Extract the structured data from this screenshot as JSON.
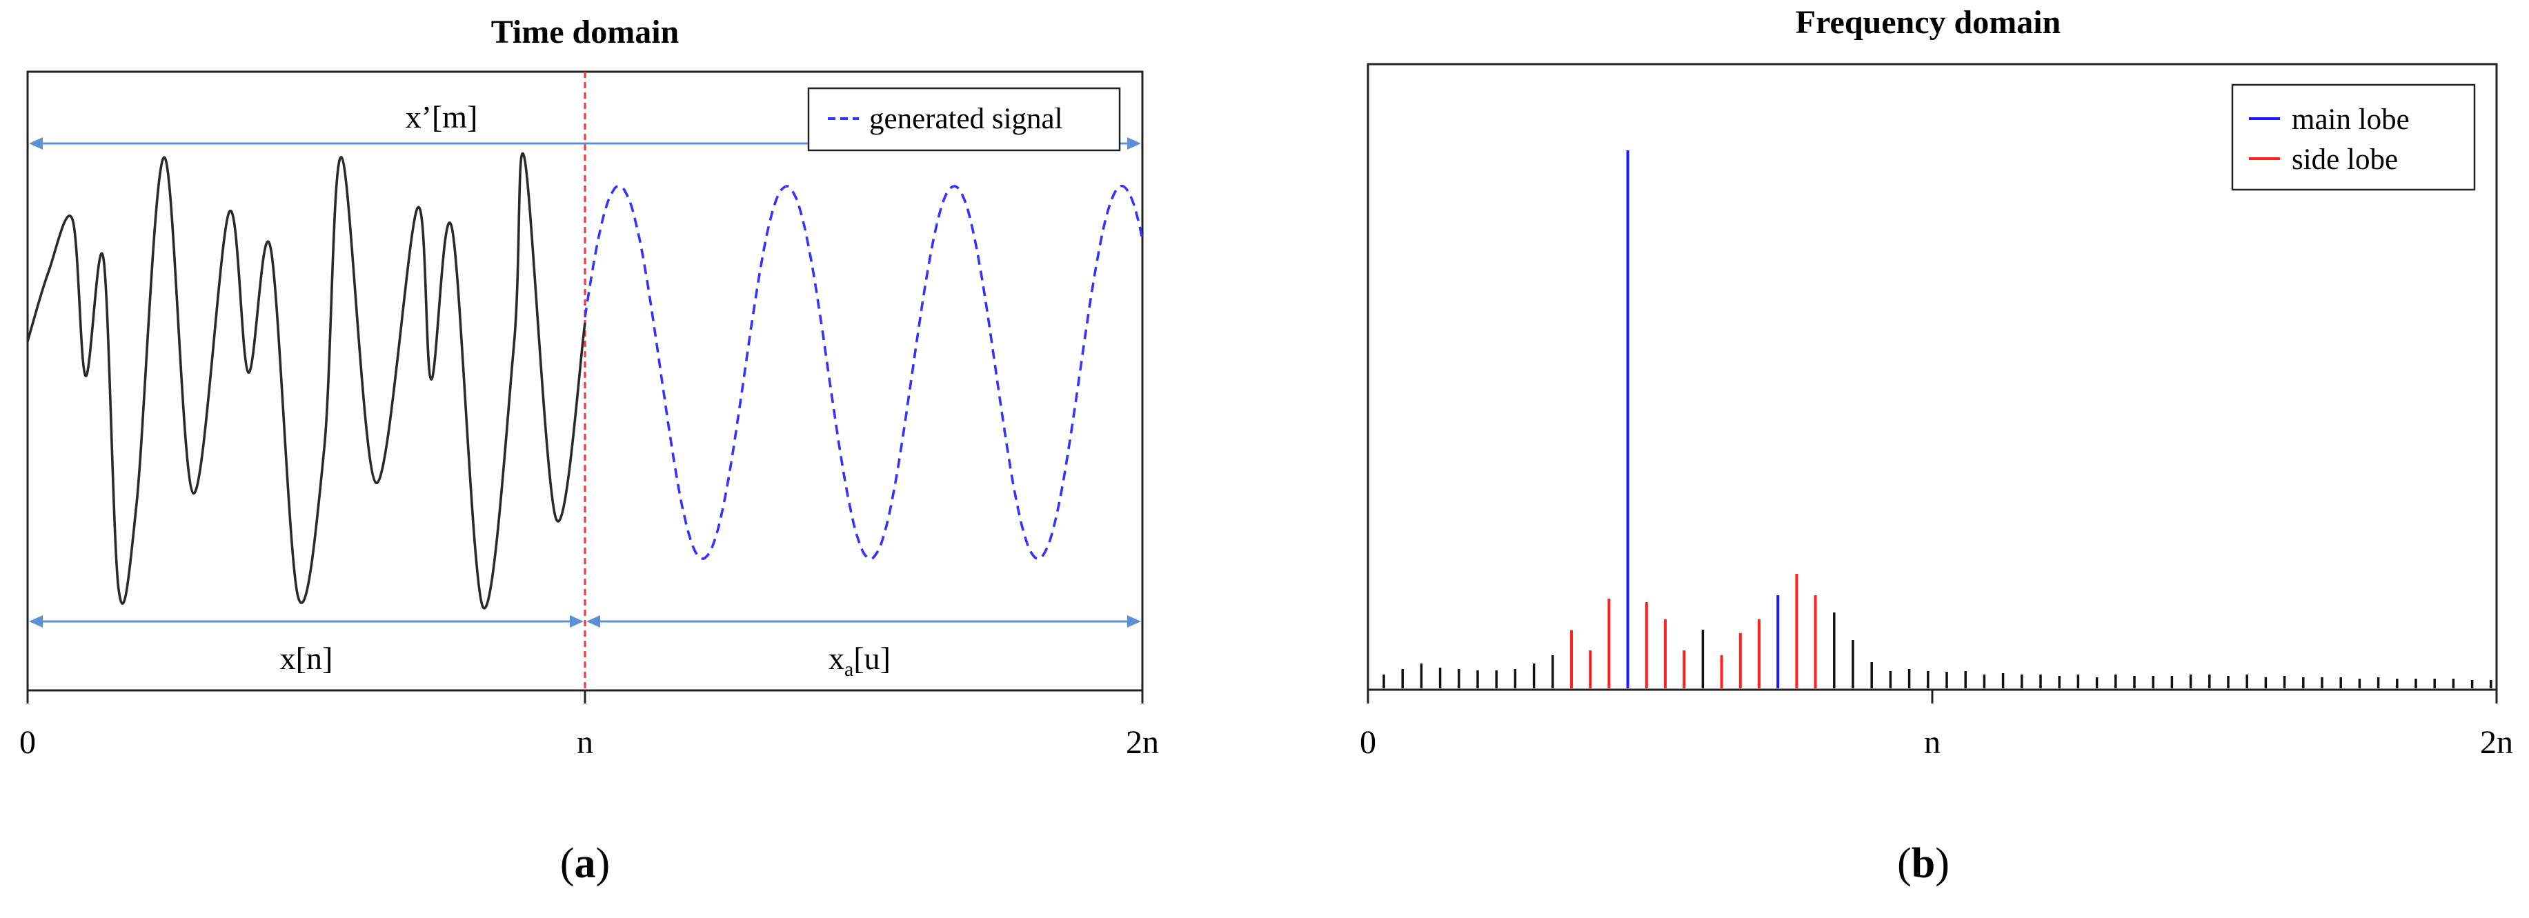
{
  "panel_a": {
    "title": "Time domain",
    "top_span_label": "x’[m]",
    "left_span_label": "x[n]",
    "right_span_label_base": "x",
    "right_span_label_sub": "a",
    "right_span_label_tail": "[u]",
    "legend": [
      {
        "label": "generated signal",
        "color": "#3333ff",
        "dashed": true
      }
    ],
    "ticks": [
      "0",
      "n",
      "2n"
    ],
    "caption_open": "(",
    "caption_letter": "a",
    "caption_close": ")",
    "colors": {
      "signal": "#2a2a2a",
      "generated": "#3333ff",
      "divider": "#ff3333",
      "arrow": "#5b8fd6",
      "frame": "#222222"
    }
  },
  "panel_b": {
    "title": "Frequency domain",
    "legend": [
      {
        "label": "main lobe",
        "color": "#1a1aff"
      },
      {
        "label": "side lobe",
        "color": "#ff2020"
      }
    ],
    "ticks": [
      "0",
      "n",
      "2n"
    ],
    "caption_open": "(",
    "caption_letter": "b",
    "caption_close": ")",
    "colors": {
      "main": "#1a1aff",
      "side": "#ff2020",
      "other": "#111111",
      "frame": "#222222"
    }
  }
}
